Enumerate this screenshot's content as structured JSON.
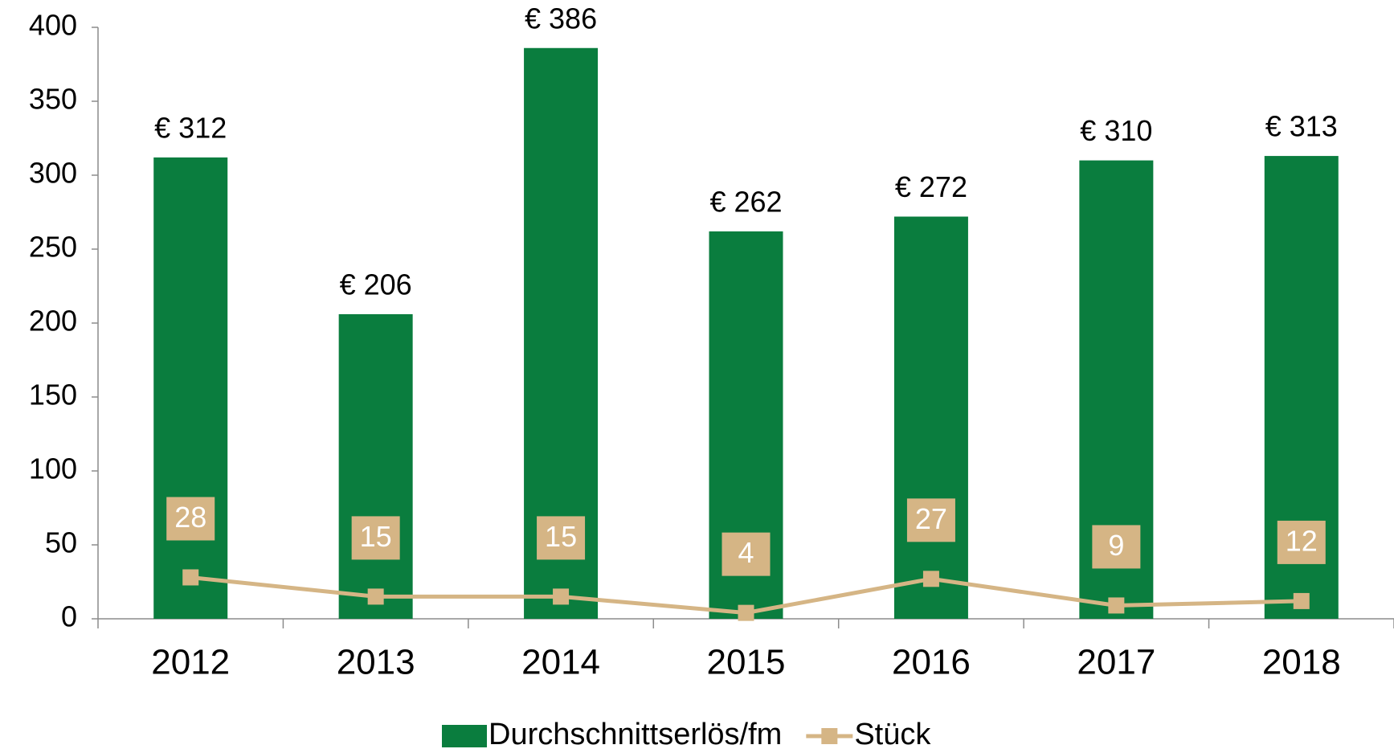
{
  "chart_data": {
    "type": "bar",
    "categories": [
      "2012",
      "2013",
      "2014",
      "2015",
      "2016",
      "2017",
      "2018"
    ],
    "series": [
      {
        "name": "Durchschnittserlös/fm",
        "type": "bar",
        "color": "#0a7d3e",
        "values": [
          312,
          206,
          386,
          262,
          272,
          310,
          313
        ],
        "value_labels": [
          "€ 312",
          "€ 206",
          "€ 386",
          "€ 262",
          "€ 272",
          "€ 310",
          "€ 313"
        ]
      },
      {
        "name": "Stück",
        "type": "line",
        "color": "#d5b585",
        "values": [
          28,
          15,
          15,
          4,
          27,
          9,
          12
        ]
      }
    ],
    "ylim": [
      0,
      400
    ],
    "yticks": [
      0,
      50,
      100,
      150,
      200,
      250,
      300,
      350,
      400
    ],
    "grid": false,
    "legend": "bottom"
  }
}
